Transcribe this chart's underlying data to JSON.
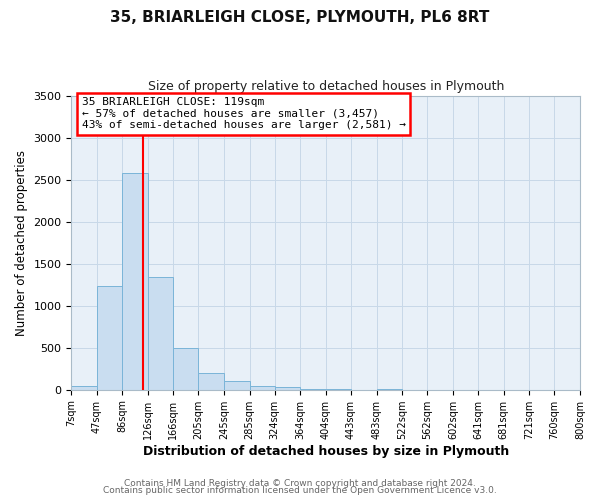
{
  "title": "35, BRIARLEIGH CLOSE, PLYMOUTH, PL6 8RT",
  "subtitle": "Size of property relative to detached houses in Plymouth",
  "xlabel": "Distribution of detached houses by size in Plymouth",
  "ylabel": "Number of detached properties",
  "bin_labels": [
    "7sqm",
    "47sqm",
    "86sqm",
    "126sqm",
    "166sqm",
    "205sqm",
    "245sqm",
    "285sqm",
    "324sqm",
    "364sqm",
    "404sqm",
    "443sqm",
    "483sqm",
    "522sqm",
    "562sqm",
    "602sqm",
    "641sqm",
    "681sqm",
    "721sqm",
    "760sqm",
    "800sqm"
  ],
  "bin_edges": [
    7,
    47,
    86,
    126,
    166,
    205,
    245,
    285,
    324,
    364,
    404,
    443,
    483,
    522,
    562,
    602,
    641,
    681,
    721,
    760,
    800
  ],
  "bar_heights": [
    50,
    1240,
    2580,
    1340,
    500,
    200,
    100,
    50,
    30,
    5,
    5,
    0,
    5,
    0,
    0,
    0,
    0,
    0,
    0,
    0
  ],
  "bar_color": "#c9ddf0",
  "bar_edge_color": "#7ab4d8",
  "vline_x": 119,
  "vline_color": "red",
  "ylim": [
    0,
    3500
  ],
  "annotation_title": "35 BRIARLEIGH CLOSE: 119sqm",
  "annotation_line1": "← 57% of detached houses are smaller (3,457)",
  "annotation_line2": "43% of semi-detached houses are larger (2,581) →",
  "footer_line1": "Contains HM Land Registry data © Crown copyright and database right 2024.",
  "footer_line2": "Contains public sector information licensed under the Open Government Licence v3.0.",
  "grid_color": "#c8d8e8",
  "plot_bg_color": "#e8f0f8",
  "fig_bg_color": "#ffffff"
}
